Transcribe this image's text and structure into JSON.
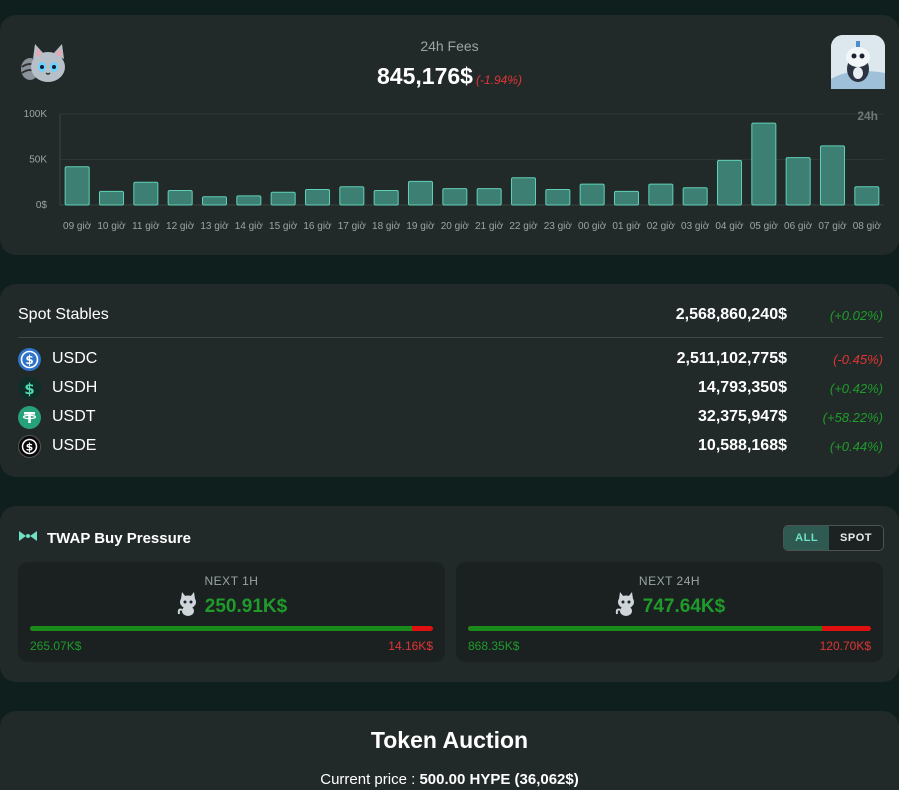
{
  "fees": {
    "title": "24h Fees",
    "value": "845,176$",
    "change": "(-1.94%)",
    "range_label": "24h"
  },
  "chart_data": {
    "type": "bar",
    "categories": [
      "09 giờ",
      "10 giờ",
      "11 giờ",
      "12 giờ",
      "13 giờ",
      "14 giờ",
      "15 giờ",
      "16 giờ",
      "17 giờ",
      "18 giờ",
      "19 giờ",
      "20 giờ",
      "21 giờ",
      "22 giờ",
      "23 giờ",
      "00 giờ",
      "01 giờ",
      "02 giờ",
      "03 giờ",
      "04 giờ",
      "05 giờ",
      "06 giờ",
      "07 giờ",
      "08 giờ"
    ],
    "values": [
      42000,
      15000,
      25000,
      16000,
      9000,
      10000,
      14000,
      17000,
      20000,
      16000,
      26000,
      18000,
      18000,
      30000,
      17000,
      23000,
      15000,
      23000,
      19000,
      49000,
      90000,
      52000,
      65000,
      20000
    ],
    "yticks": [
      "0$",
      "50K",
      "100K"
    ],
    "ylim": [
      0,
      100000
    ],
    "grid": true,
    "bar_color": "#3d7f72",
    "bar_edge": "#5fd0b6"
  },
  "stables": {
    "title": "Spot Stables",
    "total": "2,568,860,240$",
    "total_change": "(+0.02%)",
    "rows": [
      {
        "name": "USDC",
        "icon": "usdc-icon",
        "amount": "2,511,102,775$",
        "change": "(-0.45%)",
        "direction": "neg"
      },
      {
        "name": "USDH",
        "icon": "usdh-icon",
        "amount": "14,793,350$",
        "change": "(+0.42%)",
        "direction": "pos"
      },
      {
        "name": "USDT",
        "icon": "usdt-icon",
        "amount": "32,375,947$",
        "change": "(+58.22%)",
        "direction": "pos"
      },
      {
        "name": "USDE",
        "icon": "usde-icon",
        "amount": "10,588,168$",
        "change": "(+0.44%)",
        "direction": "pos"
      }
    ]
  },
  "twap": {
    "title": "TWAP Buy Pressure",
    "toggle": {
      "all": "ALL",
      "spot": "SPOT",
      "selected": "ALL"
    },
    "next_1h": {
      "label": "NEXT 1H",
      "value": "250.91K$",
      "buy": "265.07K$",
      "sell": "14.16K$",
      "buy_ratio": 0.949
    },
    "next_24h": {
      "label": "NEXT 24H",
      "value": "747.64K$",
      "buy": "868.35K$",
      "sell": "120.70K$",
      "buy_ratio": 0.878
    }
  },
  "auction": {
    "title": "Token Auction",
    "price_label": "Current price : ",
    "price_value": "500.00 HYPE (36,062$)"
  },
  "colors": {
    "background": "#0e1f1d",
    "card": "#222a29",
    "positive": "#1f9b2b",
    "negative": "#e03535",
    "accent": "#5fd0b6"
  }
}
